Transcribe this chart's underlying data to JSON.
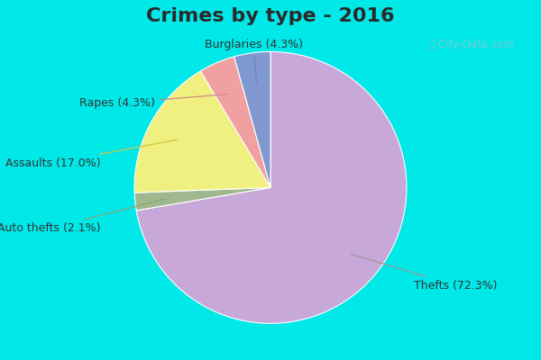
{
  "title": "Crimes by type - 2016",
  "title_fontsize": 16,
  "title_fontweight": "bold",
  "slices": [
    {
      "label": "Thefts",
      "pct": 72.3,
      "color": "#c8a8d8"
    },
    {
      "label": "Auto thefts",
      "pct": 2.1,
      "color": "#a0b890"
    },
    {
      "label": "Assaults",
      "pct": 17.0,
      "color": "#f0f080"
    },
    {
      "label": "Rapes",
      "pct": 4.3,
      "color": "#f0a0a0"
    },
    {
      "label": "Burglaries",
      "pct": 4.3,
      "color": "#8098d0"
    }
  ],
  "cyan_border": "#00e8e8",
  "inner_bg": "#d8edd8",
  "label_fontsize": 9,
  "annotation_color": "#333333",
  "startangle": 90,
  "watermark": "City-Data.com",
  "watermark_color": "#aabbcc"
}
